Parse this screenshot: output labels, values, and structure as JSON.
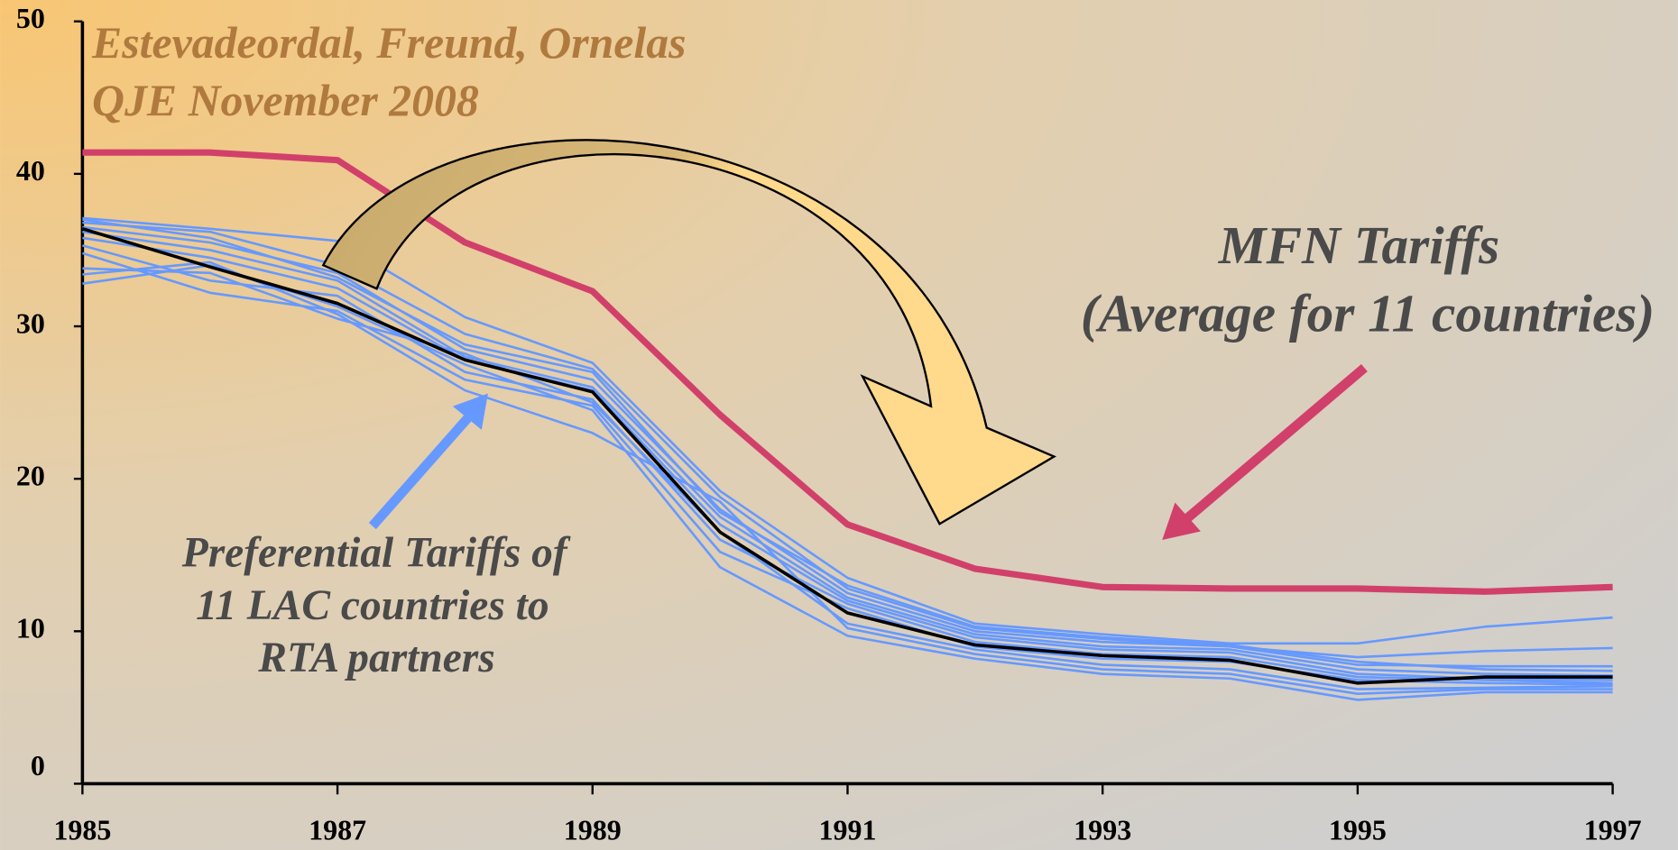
{
  "chart_data": {
    "type": "line",
    "x": [
      1985,
      1986,
      1987,
      1988,
      1989,
      1990,
      1991,
      1992,
      1993,
      1994,
      1995,
      1996,
      1997
    ],
    "xlim": [
      1985,
      1997
    ],
    "xticks": [
      1985,
      1987,
      1989,
      1991,
      1993,
      1995,
      1997
    ],
    "ylim": [
      0,
      50
    ],
    "yticks": [
      0,
      10,
      20,
      30,
      40,
      50
    ],
    "grid": false,
    "annotations": [
      "Estevadeordal, Freund, Ornelas",
      "QJE November 2008",
      "MFN Tariffs",
      "(Average for 11 countries)",
      "Preferential Tariffs of",
      "11 LAC countries to",
      "RTA partners"
    ],
    "series": [
      {
        "color": "#6699ff",
        "values": [
          37.1,
          36.4,
          35.6,
          30.6,
          27.6,
          19.2,
          13.5,
          10.5,
          9.8,
          9.2,
          9.2,
          10.3,
          10.9
        ]
      },
      {
        "color": "#6699ff",
        "values": [
          36.8,
          36.2,
          34.0,
          29.5,
          27.2,
          18.8,
          12.8,
          10.2,
          9.5,
          9.0,
          8.3,
          8.7,
          8.9
        ]
      },
      {
        "color": "#6699ff",
        "values": [
          36.5,
          35.5,
          33.5,
          28.5,
          26.5,
          18.0,
          12.5,
          10.0,
          9.3,
          9.0,
          7.8,
          7.7,
          7.7
        ]
      },
      {
        "color": "#6699ff",
        "values": [
          36.2,
          35.0,
          33.0,
          28.0,
          26.0,
          17.5,
          12.2,
          9.8,
          9.0,
          8.8,
          7.5,
          7.2,
          7.1
        ]
      },
      {
        "color": "#6699ff",
        "values": [
          35.8,
          34.5,
          32.5,
          27.8,
          25.8,
          17.0,
          12.0,
          9.6,
          8.8,
          8.6,
          7.2,
          6.9,
          6.8
        ]
      },
      {
        "color": "#6699ff",
        "values": [
          35.3,
          33.0,
          32.0,
          27.0,
          25.2,
          16.0,
          11.8,
          9.3,
          8.5,
          8.3,
          7.0,
          6.8,
          6.6
        ]
      },
      {
        "color": "#6699ff",
        "values": [
          34.8,
          32.2,
          31.0,
          26.5,
          24.8,
          15.2,
          11.5,
          9.0,
          8.2,
          8.0,
          6.8,
          6.6,
          6.5
        ]
      },
      {
        "color": "#6699ff",
        "values": [
          33.8,
          33.5,
          30.5,
          28.2,
          25.0,
          16.5,
          10.5,
          8.8,
          7.8,
          7.5,
          6.2,
          6.3,
          6.4
        ]
      },
      {
        "color": "#6699ff",
        "values": [
          33.4,
          34.2,
          30.8,
          25.8,
          23.0,
          18.5,
          10.2,
          8.5,
          7.5,
          7.2,
          5.9,
          6.2,
          6.2
        ]
      },
      {
        "color": "#6699ff",
        "values": [
          32.8,
          34.0,
          31.3,
          27.5,
          24.5,
          14.2,
          9.7,
          8.2,
          7.2,
          6.9,
          5.5,
          6.0,
          6.0
        ]
      },
      {
        "color": "#6699ff",
        "values": [
          37.0,
          35.8,
          33.2,
          28.8,
          27.0,
          17.8,
          13.0,
          10.3,
          9.6,
          9.1,
          8.0,
          7.5,
          7.4
        ]
      },
      {
        "color": "#000000",
        "values": [
          36.4,
          33.9,
          31.5,
          27.8,
          25.7,
          16.5,
          11.2,
          9.1,
          8.4,
          8.1,
          6.6,
          7.0,
          7.0
        ]
      },
      {
        "color": "#d1406a",
        "values": [
          41.4,
          41.4,
          40.9,
          35.5,
          32.3,
          24.2,
          17.0,
          14.1,
          12.9,
          12.8,
          12.8,
          12.6,
          12.9
        ]
      }
    ]
  }
}
